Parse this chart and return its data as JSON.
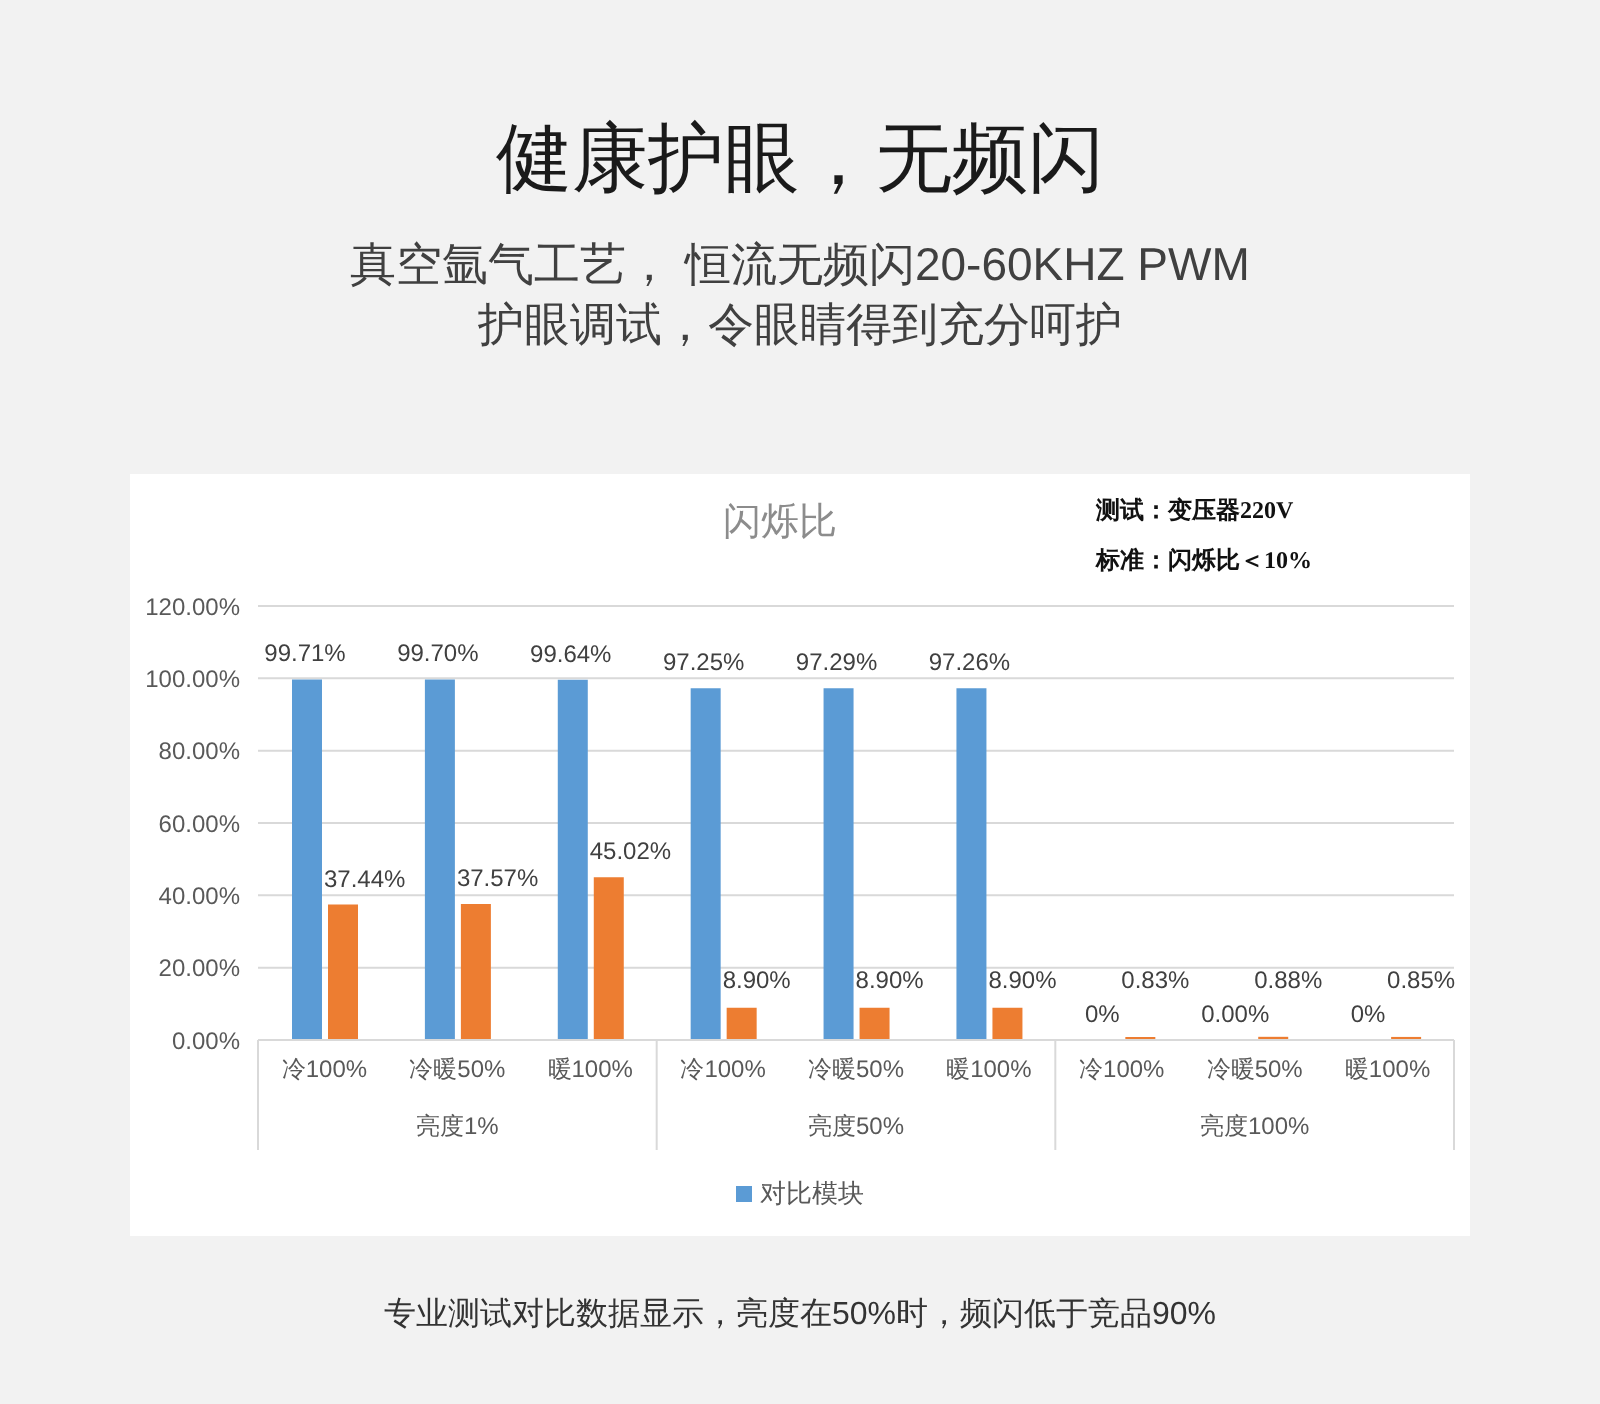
{
  "chart_data": {
    "type": "bar",
    "title": "健康护眼，无频闪",
    "subtitle": "真空氩气工艺， 恒流无频闪20-60KHZ PWM\n护眼调试，令眼睛得到充分呵护",
    "annotations": [
      "闪烁比",
      "测试：变压器220V",
      "标准：闪烁比＜10%",
      "亮度1%",
      "亮度50%",
      "亮度100%",
      "专业测试对比数据显示，亮度在50%时，频闪低于竞品90%"
    ],
    "categories": [
      "冷100%",
      "冷暖50%",
      "暖100%",
      "冷100%",
      "冷暖50%",
      "暖100%",
      "冷100%",
      "冷暖50%",
      "暖100%"
    ],
    "series": [
      {
        "name": "对比模块",
        "color": "#5b9bd5",
        "values": [
          99.71,
          99.7,
          99.64,
          97.25,
          97.29,
          97.26,
          0,
          0,
          0
        ],
        "value_labels": [
          "99.71%",
          "99.70%",
          "99.64%",
          "97.25%",
          "97.29%",
          "97.26%",
          "0%",
          "0.00%",
          "0%"
        ]
      },
      {
        "color": "#ed7d31",
        "values": [
          37.44,
          37.57,
          45.02,
          8.9,
          8.9,
          8.9,
          0.83,
          0.88,
          0.85
        ],
        "value_labels": [
          "37.44%",
          "37.57%",
          "45.02%",
          "8.90%",
          "8.90%",
          "8.90%",
          "0.83%",
          "0.88%",
          "0.85%"
        ]
      }
    ],
    "ylim": [
      0,
      120
    ],
    "yticks": [
      {
        "value": 0,
        "label": "0.00%"
      },
      {
        "value": 20,
        "label": "20.00%"
      },
      {
        "value": 40,
        "label": "40.00%"
      },
      {
        "value": 60,
        "label": "60.00%"
      },
      {
        "value": 80,
        "label": "80.00%"
      },
      {
        "value": 100,
        "label": "100.00%"
      },
      {
        "value": 120,
        "label": "120.00%"
      }
    ],
    "grid": "y",
    "legend": "bottom"
  }
}
